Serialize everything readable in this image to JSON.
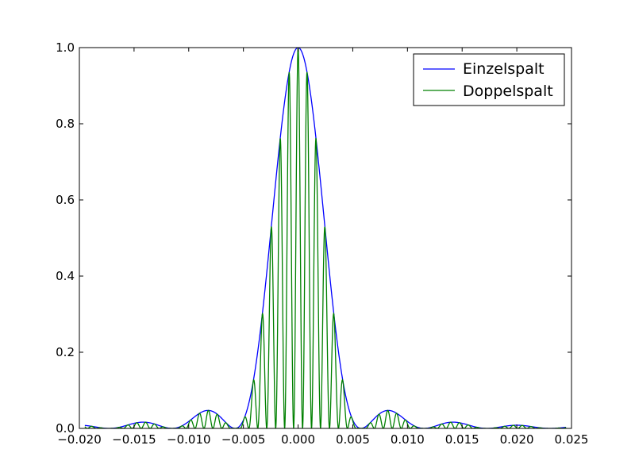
{
  "chart_data": {
    "type": "line",
    "title": "",
    "xlabel": "",
    "ylabel": "",
    "xlim": [
      -0.02,
      0.025
    ],
    "ylim": [
      0.0,
      1.0
    ],
    "x_ticks": [
      -0.02,
      -0.015,
      -0.01,
      -0.005,
      0.0,
      0.005,
      0.01,
      0.015,
      0.02,
      0.025
    ],
    "x_tick_labels": [
      "−0.020",
      "−0.015",
      "−0.010",
      "−0.005",
      "0.000",
      "0.005",
      "0.010",
      "0.015",
      "0.020",
      "0.025"
    ],
    "y_ticks": [
      0.0,
      0.2,
      0.4,
      0.6,
      0.8,
      1.0
    ],
    "y_tick_labels": [
      "0.0",
      "0.2",
      "0.4",
      "0.6",
      "0.8",
      "1.0"
    ],
    "grid": false,
    "legend_position": "top-right",
    "x_range": [
      -0.0195,
      0.0245
    ],
    "series": [
      {
        "name": "Einzelspalt",
        "color": "#0000ff",
        "model": "single_slit",
        "minima_spacing": 0.00576
      },
      {
        "name": "Doppelspalt",
        "color": "#008000",
        "model": "double_slit",
        "minima_spacing": 0.00576,
        "fringe_period": 0.00082
      }
    ]
  }
}
